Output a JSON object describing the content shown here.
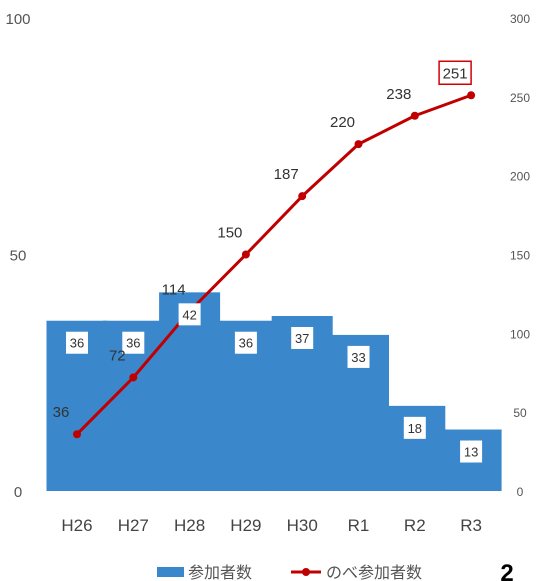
{
  "chart_data": {
    "type": "bar",
    "categories": [
      "H26",
      "H27",
      "H28",
      "H29",
      "H30",
      "R1",
      "R2",
      "R3"
    ],
    "series": [
      {
        "name": "参加者数",
        "type": "bar",
        "axis": "left",
        "color": "#3a87cc",
        "values": [
          36,
          36,
          42,
          36,
          37,
          33,
          18,
          13
        ]
      },
      {
        "name": "のべ参加者数",
        "type": "line",
        "axis": "right",
        "color": "#c00000",
        "values": [
          36,
          72,
          114,
          150,
          187,
          220,
          238,
          251
        ]
      }
    ],
    "left_axis": {
      "ylim": [
        0,
        100
      ],
      "ticks": [
        "0",
        "50",
        "100"
      ]
    },
    "right_axis": {
      "ylim": [
        0,
        300
      ],
      "ticks": [
        "0",
        "50",
        "100",
        "150",
        "200",
        "250",
        "300"
      ]
    },
    "legend": {
      "position": "bottom",
      "items": [
        "参加者数",
        "のべ参加者数"
      ]
    },
    "highlighted_label": "251",
    "grid": false
  },
  "page_number": "2"
}
